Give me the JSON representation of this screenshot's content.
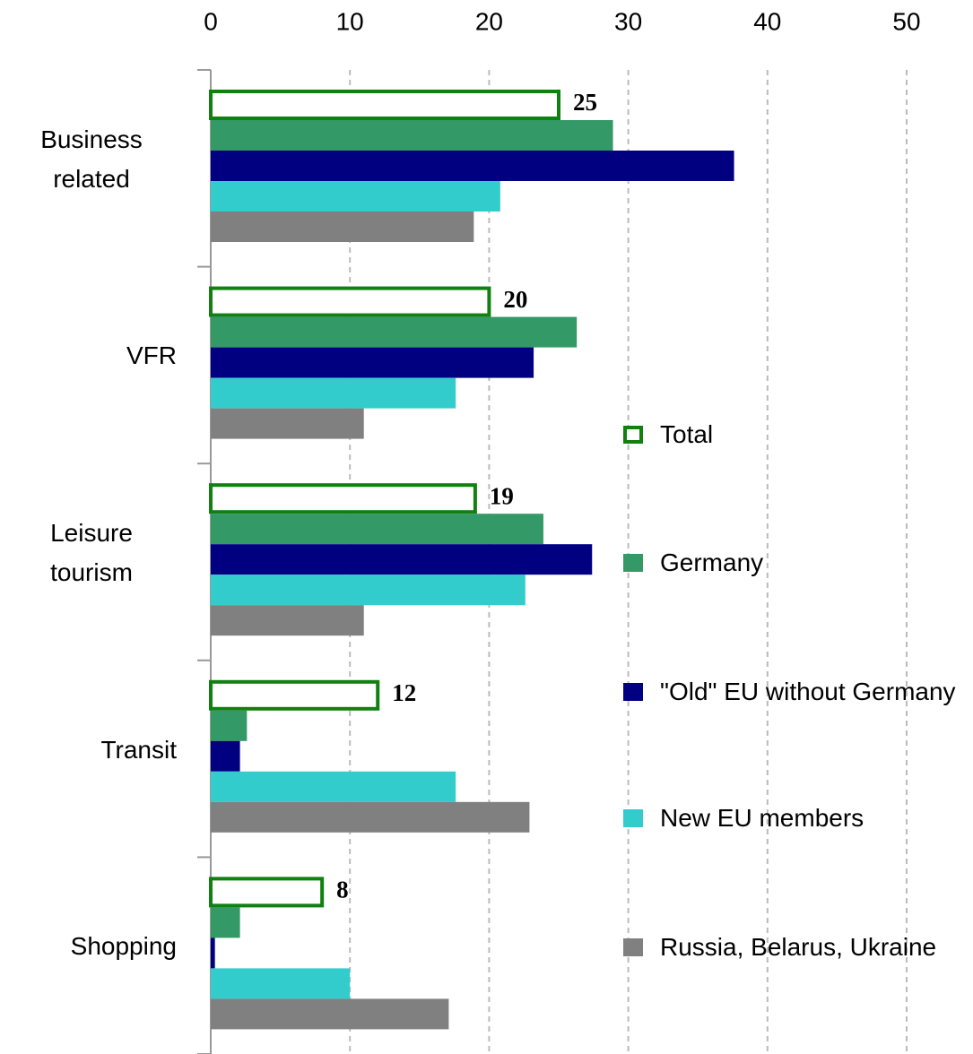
{
  "chart_data": {
    "type": "hbar",
    "categories": [
      "Business related",
      "VFR",
      "Leisure tourism",
      "Transit",
      "Shopping"
    ],
    "series": [
      {
        "name": "Total",
        "color": "#108010",
        "hollow": true,
        "show_values": true,
        "values": [
          25,
          20,
          19,
          12,
          8
        ]
      },
      {
        "name": "Germany",
        "color": "#339966",
        "values": [
          28.9,
          26.3,
          23.9,
          2.6,
          2.1
        ]
      },
      {
        "name": "\"Old\" EU without Germany",
        "color": "#000080",
        "values": [
          37.6,
          23.2,
          27.4,
          2.1,
          0.3
        ]
      },
      {
        "name": "New EU members",
        "color": "#33cccc",
        "values": [
          20.8,
          17.6,
          22.6,
          17.6,
          10
        ]
      },
      {
        "name": "Russia, Belarus, Ukraine",
        "color": "#808080",
        "values": [
          18.9,
          11,
          11,
          22.9,
          17.1
        ]
      }
    ],
    "xlim": [
      0,
      50
    ],
    "xticks": [
      0,
      10,
      20,
      30,
      40,
      50
    ],
    "grid": true,
    "legend": "right"
  }
}
